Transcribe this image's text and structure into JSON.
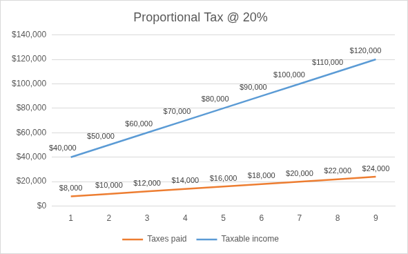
{
  "chart_data": {
    "type": "line",
    "title": "Proportional Tax @ 20%",
    "categories": [
      "1",
      "2",
      "3",
      "4",
      "5",
      "6",
      "7",
      "8",
      "9"
    ],
    "series": [
      {
        "name": "Taxes paid",
        "color": "#ed7d31",
        "values": [
          8000,
          10000,
          12000,
          14000,
          16000,
          18000,
          20000,
          22000,
          24000
        ],
        "value_labels": [
          "$8,000",
          "$10,000",
          "$12,000",
          "$14,000",
          "$16,000",
          "$18,000",
          "$20,000",
          "$22,000",
          "$24,000"
        ]
      },
      {
        "name": "Taxable income",
        "color": "#5b9bd5",
        "values": [
          40000,
          50000,
          60000,
          70000,
          80000,
          90000,
          100000,
          110000,
          120000
        ],
        "value_labels": [
          "$40,000",
          "$50,000",
          "$60,000",
          "$70,000",
          "$80,000",
          "$90,000",
          "$100,000",
          "$110,000",
          "$120,000"
        ]
      }
    ],
    "ylim": [
      0,
      140000
    ],
    "yticks": [
      {
        "value": 0,
        "label": "$0"
      },
      {
        "value": 20000,
        "label": "$20,000"
      },
      {
        "value": 40000,
        "label": "$40,000"
      },
      {
        "value": 60000,
        "label": "$60,000"
      },
      {
        "value": 80000,
        "label": "$80,000"
      },
      {
        "value": 100000,
        "label": "$100,000"
      },
      {
        "value": 120000,
        "label": "$120,000"
      },
      {
        "value": 140000,
        "label": "$140,000"
      }
    ],
    "grid": true,
    "legend": "bottom",
    "data_labels": true
  }
}
